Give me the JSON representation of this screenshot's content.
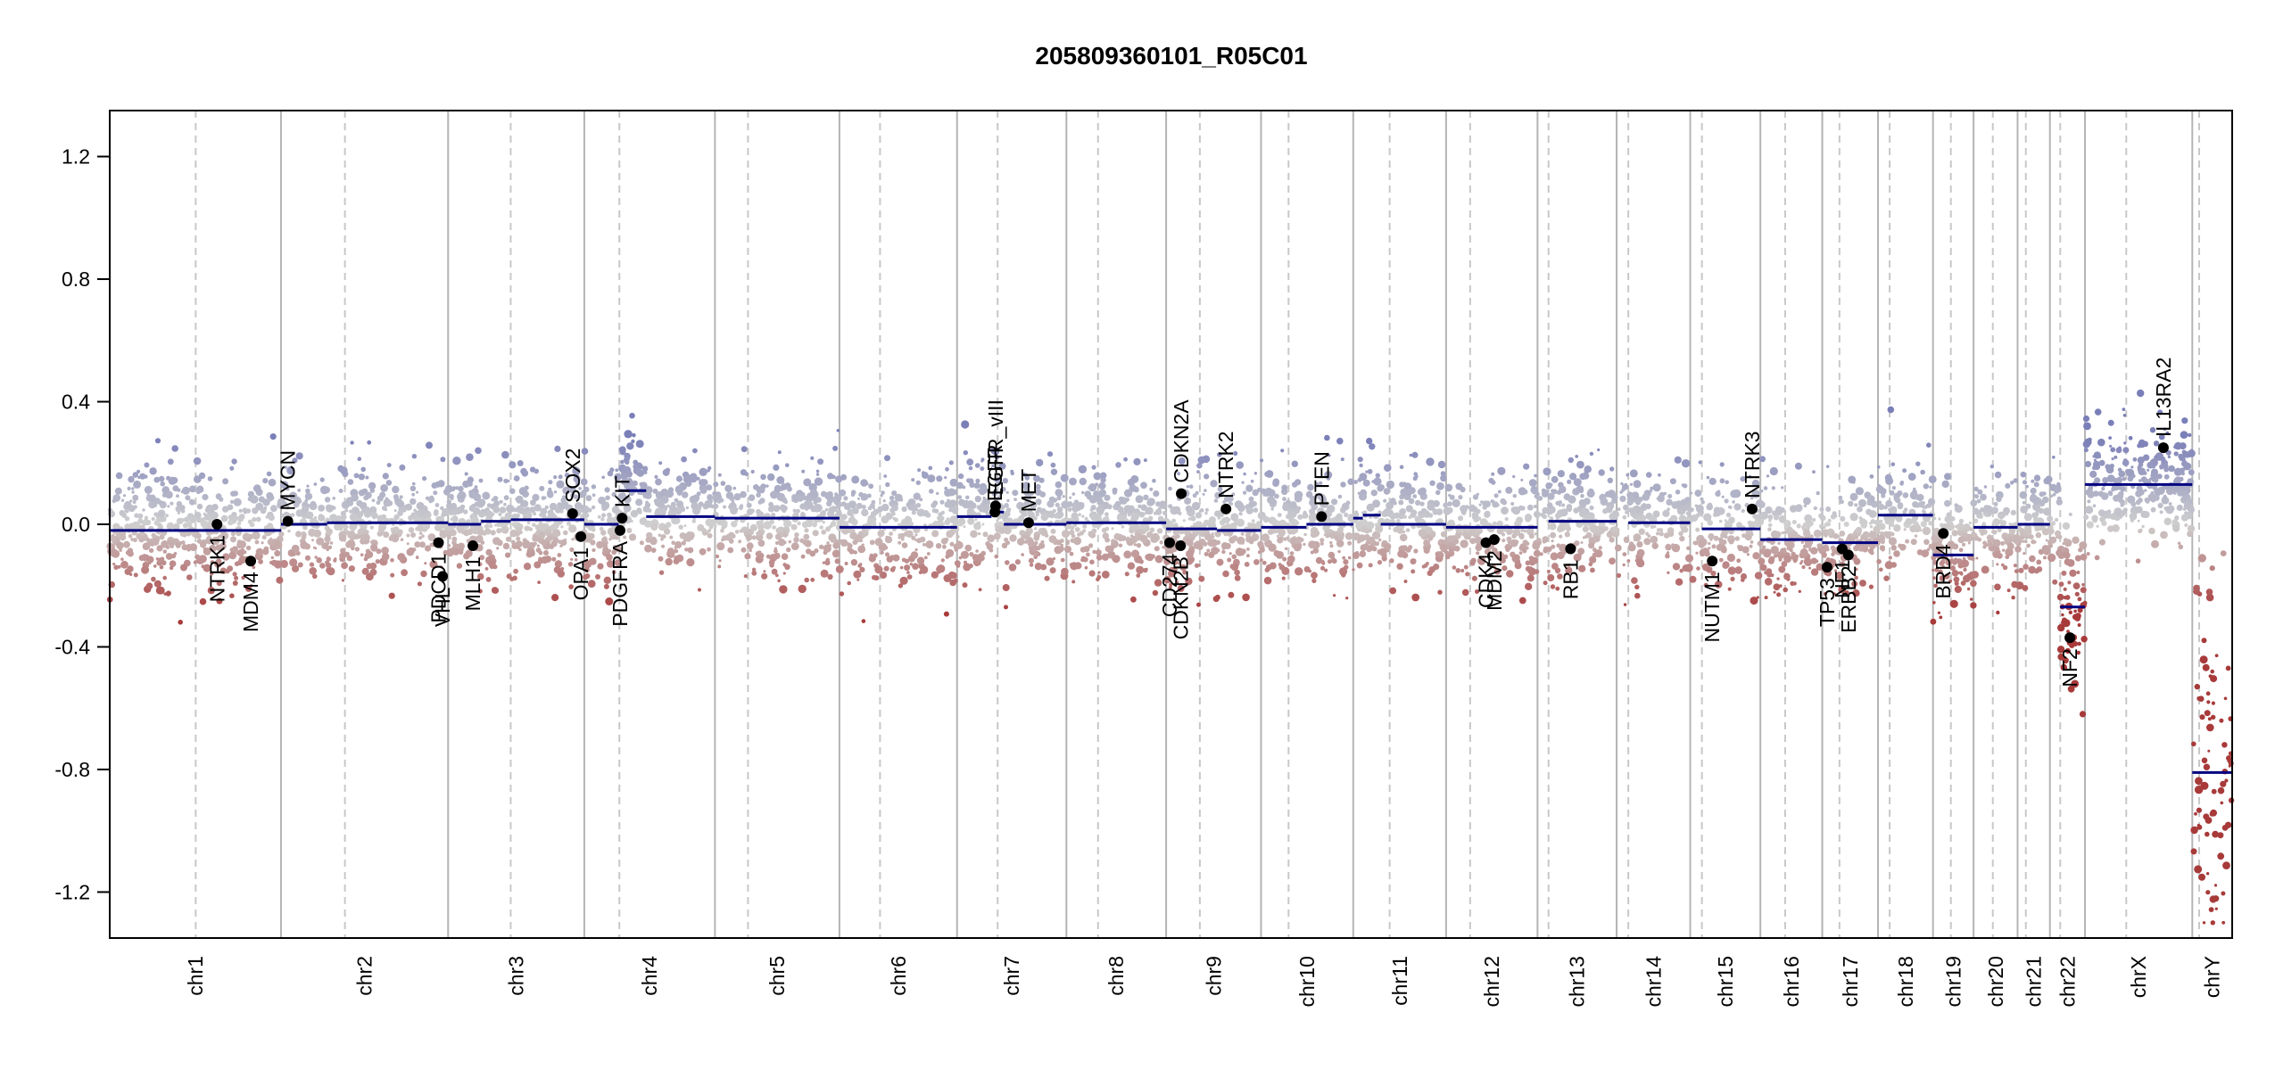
{
  "chart_data": {
    "type": "scatter",
    "title": "205809360101_R05C01",
    "xlabel": "",
    "ylabel": "",
    "ylim": [
      -1.35,
      1.35
    ],
    "yticks": [
      1.2,
      0.8,
      0.4,
      0.0,
      -0.4,
      -0.8,
      -1.2
    ],
    "ytick_labels": [
      "1.2",
      "0.8",
      "0.4",
      "0.0",
      "-0.4",
      "-0.8",
      "-1.2"
    ],
    "grid": false,
    "legend": "none",
    "colors": {
      "gain": "#7b7fb8",
      "neutral": "#cfcfcf",
      "loss": "#a83a3a",
      "segment": "#000080",
      "gene": "#000000",
      "boundary": "#b4b4b4",
      "centromere": "#c8c8c8"
    },
    "chromosomes": [
      {
        "name": "chr1",
        "start": 0,
        "end": 249,
        "centromere": 125
      },
      {
        "name": "chr2",
        "start": 249,
        "end": 492,
        "centromere": 342
      },
      {
        "name": "chr3",
        "start": 492,
        "end": 690,
        "centromere": 583
      },
      {
        "name": "chr4",
        "start": 690,
        "end": 880,
        "centromere": 741
      },
      {
        "name": "chr5",
        "start": 880,
        "end": 1061,
        "centromere": 928
      },
      {
        "name": "chr6",
        "start": 1061,
        "end": 1232,
        "centromere": 1120
      },
      {
        "name": "chr7",
        "start": 1232,
        "end": 1391,
        "centromere": 1291
      },
      {
        "name": "chr8",
        "start": 1391,
        "end": 1536,
        "centromere": 1437
      },
      {
        "name": "chr9",
        "start": 1536,
        "end": 1674,
        "centromere": 1585
      },
      {
        "name": "chr10",
        "start": 1674,
        "end": 1808,
        "centromere": 1714
      },
      {
        "name": "chr11",
        "start": 1808,
        "end": 1943,
        "centromere": 1861
      },
      {
        "name": "chr12",
        "start": 1943,
        "end": 2076,
        "centromere": 1978
      },
      {
        "name": "chr13",
        "start": 2076,
        "end": 2191,
        "centromere": 2092
      },
      {
        "name": "chr14",
        "start": 2191,
        "end": 2298,
        "centromere": 2208
      },
      {
        "name": "chr15",
        "start": 2298,
        "end": 2400,
        "centromere": 2315
      },
      {
        "name": "chr16",
        "start": 2400,
        "end": 2490,
        "centromere": 2436
      },
      {
        "name": "chr17",
        "start": 2490,
        "end": 2571,
        "centromere": 2515
      },
      {
        "name": "chr18",
        "start": 2571,
        "end": 2651,
        "centromere": 2588
      },
      {
        "name": "chr19",
        "start": 2651,
        "end": 2710,
        "centromere": 2677
      },
      {
        "name": "chr20",
        "start": 2710,
        "end": 2774,
        "centromere": 2738
      },
      {
        "name": "chr21",
        "start": 2774,
        "end": 2821,
        "centromere": 2786
      },
      {
        "name": "chr22",
        "start": 2821,
        "end": 2872,
        "centromere": 2836
      },
      {
        "name": "chrX",
        "start": 2872,
        "end": 3028,
        "centromere": 2932
      },
      {
        "name": "chrY",
        "start": 3028,
        "end": 3086,
        "centromere": 3038
      }
    ],
    "segments": [
      {
        "x0": 0,
        "x1": 249,
        "y": -0.02
      },
      {
        "x0": 249,
        "x1": 316,
        "y": 0.0
      },
      {
        "x0": 316,
        "x1": 470,
        "y": 0.005
      },
      {
        "x0": 470,
        "x1": 492,
        "y": 0.005
      },
      {
        "x0": 492,
        "x1": 540,
        "y": 0.0
      },
      {
        "x0": 540,
        "x1": 583,
        "y": 0.01
      },
      {
        "x0": 583,
        "x1": 690,
        "y": 0.015
      },
      {
        "x0": 690,
        "x1": 740,
        "y": 0.0
      },
      {
        "x0": 740,
        "x1": 780,
        "y": 0.11
      },
      {
        "x0": 780,
        "x1": 880,
        "y": 0.025
      },
      {
        "x0": 880,
        "x1": 1061,
        "y": 0.02
      },
      {
        "x0": 1061,
        "x1": 1232,
        "y": -0.01
      },
      {
        "x0": 1232,
        "x1": 1282,
        "y": 0.025
      },
      {
        "x0": 1282,
        "x1": 1300,
        "y": 0.04
      },
      {
        "x0": 1300,
        "x1": 1345,
        "y": 0.0
      },
      {
        "x0": 1345,
        "x1": 1391,
        "y": 0.0
      },
      {
        "x0": 1391,
        "x1": 1536,
        "y": 0.005
      },
      {
        "x0": 1536,
        "x1": 1610,
        "y": -0.015
      },
      {
        "x0": 1610,
        "x1": 1674,
        "y": -0.02
      },
      {
        "x0": 1674,
        "x1": 1740,
        "y": -0.01
      },
      {
        "x0": 1740,
        "x1": 1808,
        "y": 0.0
      },
      {
        "x0": 1808,
        "x1": 1822,
        "y": 0.02
      },
      {
        "x0": 1822,
        "x1": 1848,
        "y": 0.03
      },
      {
        "x0": 1848,
        "x1": 1943,
        "y": 0.0
      },
      {
        "x0": 1943,
        "x1": 2076,
        "y": -0.01
      },
      {
        "x0": 2092,
        "x1": 2191,
        "y": 0.01
      },
      {
        "x0": 2208,
        "x1": 2298,
        "y": 0.005
      },
      {
        "x0": 2315,
        "x1": 2400,
        "y": -0.015
      },
      {
        "x0": 2400,
        "x1": 2490,
        "y": -0.05
      },
      {
        "x0": 2490,
        "x1": 2571,
        "y": -0.06
      },
      {
        "x0": 2571,
        "x1": 2651,
        "y": 0.03
      },
      {
        "x0": 2651,
        "x1": 2710,
        "y": -0.1
      },
      {
        "x0": 2710,
        "x1": 2774,
        "y": -0.01
      },
      {
        "x0": 2774,
        "x1": 2821,
        "y": 0.0
      },
      {
        "x0": 2836,
        "x1": 2872,
        "y": -0.27
      },
      {
        "x0": 2872,
        "x1": 3028,
        "y": 0.13
      },
      {
        "x0": 3028,
        "x1": 3086,
        "y": -0.81
      }
    ],
    "genes": [
      {
        "name": "NTRK1",
        "x": 156,
        "y": 0.0,
        "label_side": "below"
      },
      {
        "name": "MDM4",
        "x": 205,
        "y": -0.12,
        "label_side": "below"
      },
      {
        "name": "MYCN",
        "x": 259,
        "y": 0.01,
        "label_side": "above"
      },
      {
        "name": "PDCD1",
        "x": 478,
        "y": -0.06,
        "label_side": "below"
      },
      {
        "name": "VHL",
        "x": 484,
        "y": -0.17,
        "label_side": "below"
      },
      {
        "name": "MLH1",
        "x": 528,
        "y": -0.07,
        "label_side": "below"
      },
      {
        "name": "SOX2",
        "x": 673,
        "y": 0.035,
        "label_side": "above"
      },
      {
        "name": "OPA1",
        "x": 685,
        "y": -0.04,
        "label_side": "below"
      },
      {
        "name": "KIT",
        "x": 745,
        "y": 0.02,
        "label_side": "above"
      },
      {
        "name": "PDGFRA",
        "x": 742,
        "y": -0.02,
        "label_side": "below"
      },
      {
        "name": "EGFR",
        "x": 1287,
        "y": 0.04,
        "label_side": "above"
      },
      {
        "name": "EGFR_vIII",
        "x": 1288,
        "y": 0.06,
        "label_side": "above"
      },
      {
        "name": "MET",
        "x": 1336,
        "y": 0.005,
        "label_side": "above"
      },
      {
        "name": "CDKN2A",
        "x": 1558,
        "y": 0.1,
        "label_side": "above"
      },
      {
        "name": "CD274",
        "x": 1541,
        "y": -0.06,
        "label_side": "below"
      },
      {
        "name": "CDKN2B",
        "x": 1557,
        "y": -0.07,
        "label_side": "below"
      },
      {
        "name": "NTRK2",
        "x": 1623,
        "y": 0.05,
        "label_side": "above"
      },
      {
        "name": "PTEN",
        "x": 1762,
        "y": 0.025,
        "label_side": "above"
      },
      {
        "name": "CDK4",
        "x": 2001,
        "y": -0.06,
        "label_side": "below"
      },
      {
        "name": "MDM2",
        "x": 2013,
        "y": -0.05,
        "label_side": "below"
      },
      {
        "name": "RB1",
        "x": 2124,
        "y": -0.08,
        "label_side": "below"
      },
      {
        "name": "NUTM1",
        "x": 2330,
        "y": -0.12,
        "label_side": "below"
      },
      {
        "name": "NTRK3",
        "x": 2388,
        "y": 0.05,
        "label_side": "above"
      },
      {
        "name": "TP53",
        "x": 2497,
        "y": -0.14,
        "label_side": "below"
      },
      {
        "name": "NF1",
        "x": 2519,
        "y": -0.08,
        "label_side": "below"
      },
      {
        "name": "ERBB2",
        "x": 2528,
        "y": -0.1,
        "label_side": "below"
      },
      {
        "name": "BRD4",
        "x": 2666,
        "y": -0.03,
        "label_side": "below"
      },
      {
        "name": "NF2",
        "x": 2850,
        "y": -0.37,
        "label_side": "below"
      },
      {
        "name": "IL13RA2",
        "x": 2986,
        "y": 0.25,
        "label_side": "above"
      }
    ]
  }
}
